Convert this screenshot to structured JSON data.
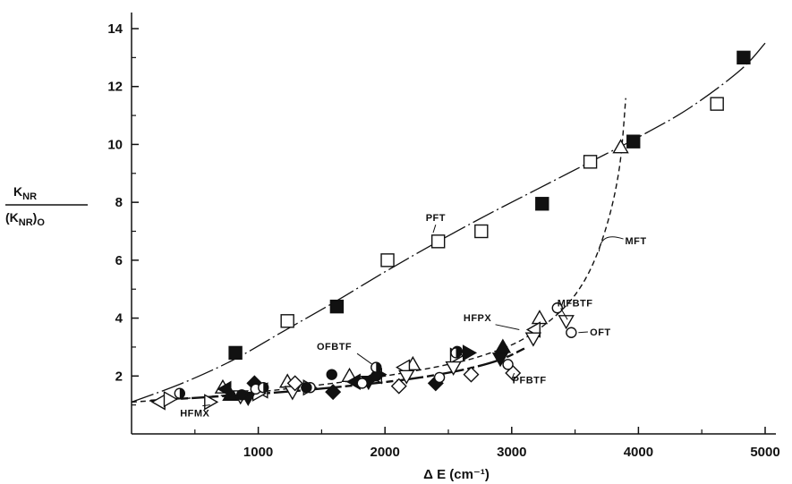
{
  "chart_data": {
    "type": "scatter",
    "title": "",
    "xlabel": "Δ E  (cm⁻¹)",
    "ylabel": {
      "numerator": "K",
      "numerator_sub": "NR",
      "denominator": "(K",
      "denominator_sub": "NR",
      "denominator_close": ")",
      "denominator_close_sub": "O"
    },
    "xlim": [
      0,
      5000
    ],
    "ylim": [
      0,
      14
    ],
    "x_ticks": [
      1000,
      2000,
      3000,
      4000,
      5000
    ],
    "y_ticks": [
      2,
      4,
      6,
      8,
      10,
      12,
      14
    ],
    "grid": false,
    "series": [
      {
        "name": "PFT",
        "marker": "square-open",
        "points": [
          [
            1230,
            3.9
          ],
          [
            2020,
            6.0
          ],
          [
            2420,
            6.65
          ],
          [
            2760,
            7.0
          ],
          [
            3620,
            9.4
          ],
          [
            4620,
            11.4
          ]
        ]
      },
      {
        "name": "",
        "marker": "square-filled",
        "points": [
          [
            820,
            2.8
          ],
          [
            1620,
            4.4
          ],
          [
            3240,
            7.95
          ],
          [
            3960,
            10.1
          ],
          [
            4830,
            13.0
          ]
        ]
      },
      {
        "name": "MFT",
        "marker": "triangle-up-open",
        "points": [
          [
            720,
            1.6
          ],
          [
            1230,
            1.8
          ],
          [
            1720,
            2.0
          ],
          [
            2220,
            2.4
          ],
          [
            3220,
            4.0
          ],
          [
            3860,
            9.9
          ]
        ]
      },
      {
        "name": "",
        "marker": "triangle-up-filled",
        "points": [
          [
            780,
            1.35
          ],
          [
            2930,
            3.0
          ]
        ]
      },
      {
        "name": "HFPX",
        "marker": "triangle-left-open",
        "points": [
          [
            220,
            1.1
          ],
          [
            1030,
            1.5
          ],
          [
            1930,
            2.0
          ],
          [
            2150,
            2.3
          ],
          [
            3180,
            3.6
          ]
        ]
      },
      {
        "name": "",
        "marker": "triangle-left-filled",
        "points": [
          [
            740,
            1.55
          ],
          [
            1760,
            1.8
          ]
        ]
      },
      {
        "name": "HFMX",
        "marker": "triangle-right-open",
        "points": [
          [
            300,
            1.2
          ],
          [
            620,
            1.1
          ],
          [
            1000,
            1.4
          ],
          [
            1400,
            1.6
          ],
          [
            2560,
            2.7
          ]
        ]
      },
      {
        "name": "",
        "marker": "triangle-right-filled",
        "points": [
          [
            1950,
            2.05
          ],
          [
            2660,
            2.8
          ]
        ]
      },
      {
        "name": "",
        "marker": "triangle-down-open",
        "points": [
          [
            860,
            1.3
          ],
          [
            1270,
            1.45
          ],
          [
            2170,
            2.0
          ],
          [
            2540,
            2.3
          ],
          [
            3170,
            3.3
          ],
          [
            3430,
            3.9
          ]
        ]
      },
      {
        "name": "",
        "marker": "triangle-down-filled",
        "points": [
          [
            920,
            1.25
          ],
          [
            1870,
            1.8
          ],
          [
            2910,
            2.6
          ]
        ]
      },
      {
        "name": "",
        "marker": "diamond-open",
        "points": [
          [
            1290,
            1.75
          ],
          [
            2110,
            1.65
          ],
          [
            2680,
            2.05
          ],
          [
            3010,
            2.1
          ]
        ]
      },
      {
        "name": "",
        "marker": "diamond-filled",
        "points": [
          [
            970,
            1.75
          ],
          [
            1590,
            1.45
          ],
          [
            2400,
            1.75
          ]
        ]
      },
      {
        "name": "MFBTF",
        "marker": "circle-open",
        "points": [
          [
            980,
            1.55
          ],
          [
            1410,
            1.6
          ],
          [
            1820,
            1.75
          ],
          [
            2430,
            1.95
          ],
          [
            2970,
            2.4
          ],
          [
            3360,
            4.35
          ]
        ]
      },
      {
        "name": "",
        "marker": "circle-filled",
        "points": [
          [
            870,
            1.35
          ],
          [
            1380,
            1.6
          ],
          [
            1580,
            2.05
          ],
          [
            1930,
            2.0
          ],
          [
            2570,
            2.85
          ]
        ]
      },
      {
        "name": "OFBTF",
        "marker": "circle-half",
        "points": [
          [
            380,
            1.4
          ],
          [
            1040,
            1.6
          ],
          [
            1930,
            2.3
          ],
          [
            2560,
            2.8
          ]
        ]
      },
      {
        "name": "OFT",
        "marker": "circle-open",
        "points": [
          [
            3470,
            3.5
          ]
        ]
      }
    ],
    "curves": [
      {
        "id": "pft-curve",
        "style": "long-dash",
        "points": [
          [
            0,
            1.1
          ],
          [
            400,
            1.75
          ],
          [
            800,
            2.55
          ],
          [
            1200,
            3.55
          ],
          [
            1600,
            4.55
          ],
          [
            2000,
            5.6
          ],
          [
            2400,
            6.6
          ],
          [
            2800,
            7.55
          ],
          [
            3200,
            8.45
          ],
          [
            3600,
            9.35
          ],
          [
            4000,
            10.25
          ],
          [
            4400,
            11.25
          ],
          [
            4800,
            12.55
          ],
          [
            5000,
            13.5
          ]
        ]
      },
      {
        "id": "mft-curve",
        "style": "short-dash",
        "points": [
          [
            0,
            1.1
          ],
          [
            500,
            1.25
          ],
          [
            1000,
            1.45
          ],
          [
            1500,
            1.7
          ],
          [
            2000,
            2.0
          ],
          [
            2500,
            2.4
          ],
          [
            2800,
            2.75
          ],
          [
            3100,
            3.3
          ],
          [
            3400,
            4.3
          ],
          [
            3600,
            5.5
          ],
          [
            3750,
            7.2
          ],
          [
            3850,
            9.2
          ],
          [
            3900,
            11.6
          ]
        ]
      },
      {
        "id": "lower-curve",
        "style": "solid-dash",
        "points": [
          [
            150,
            1.15
          ],
          [
            700,
            1.3
          ],
          [
            1200,
            1.45
          ],
          [
            1700,
            1.65
          ],
          [
            2200,
            1.9
          ],
          [
            2600,
            2.2
          ],
          [
            2900,
            2.55
          ],
          [
            3100,
            2.95
          ]
        ]
      }
    ],
    "annotations": [
      {
        "text": "PFT",
        "x": 2400,
        "y": 7.35
      },
      {
        "text": "MFT",
        "x": 3980,
        "y": 6.55
      },
      {
        "text": "MFBTF",
        "x": 3500,
        "y": 4.4
      },
      {
        "text": "OFT",
        "x": 3700,
        "y": 3.4
      },
      {
        "text": "HFPX",
        "x": 2730,
        "y": 3.9
      },
      {
        "text": "OFBTF",
        "x": 1600,
        "y": 2.9
      },
      {
        "text": "PFBTF",
        "x": 3140,
        "y": 1.75
      },
      {
        "text": "HFMX",
        "x": 500,
        "y": 0.6
      }
    ]
  }
}
